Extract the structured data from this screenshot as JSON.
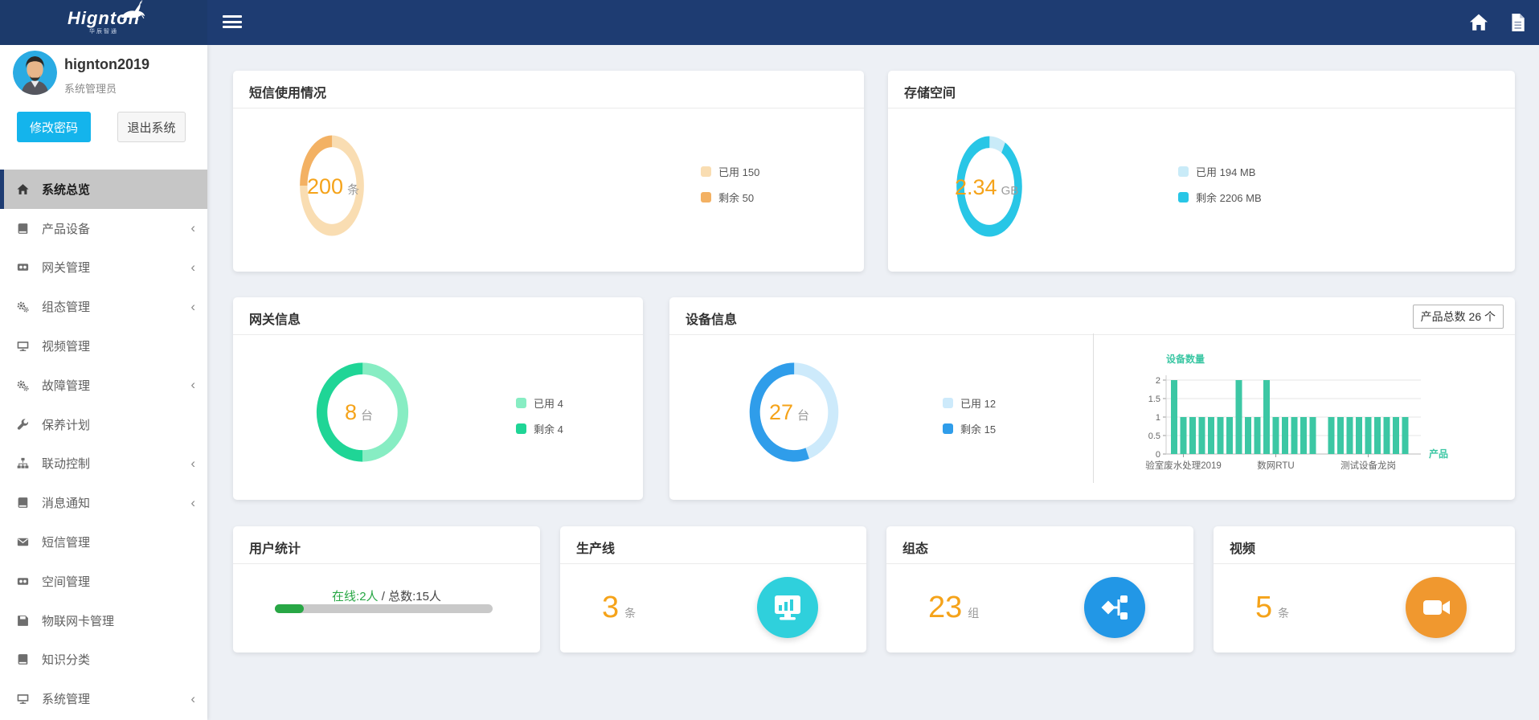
{
  "brand": {
    "name": "Hignton",
    "tagline": "华辰智通"
  },
  "topbar": {
    "icons": [
      "home-icon",
      "document-icon"
    ]
  },
  "user": {
    "name": "hignton2019",
    "role": "系统管理员",
    "change_password_label": "修改密码",
    "logout_label": "退出系统"
  },
  "sidebar": {
    "items": [
      {
        "label": "系统总览",
        "icon": "home-icon",
        "active": true,
        "expandable": false
      },
      {
        "label": "产品设备",
        "icon": "book-icon",
        "active": false,
        "expandable": true
      },
      {
        "label": "网关管理",
        "icon": "video-icon",
        "active": false,
        "expandable": true
      },
      {
        "label": "组态管理",
        "icon": "gears-icon",
        "active": false,
        "expandable": true
      },
      {
        "label": "视频管理",
        "icon": "monitor-icon",
        "active": false,
        "expandable": false
      },
      {
        "label": "故障管理",
        "icon": "gears-icon",
        "active": false,
        "expandable": true
      },
      {
        "label": "保养计划",
        "icon": "wrench-icon",
        "active": false,
        "expandable": false
      },
      {
        "label": "联动控制",
        "icon": "sitemap-icon",
        "active": false,
        "expandable": true
      },
      {
        "label": "消息通知",
        "icon": "book-icon",
        "active": false,
        "expandable": true
      },
      {
        "label": "短信管理",
        "icon": "envelope-icon",
        "active": false,
        "expandable": false
      },
      {
        "label": "空间管理",
        "icon": "video-icon",
        "active": false,
        "expandable": false
      },
      {
        "label": "物联网卡管理",
        "icon": "floppy-icon",
        "active": false,
        "expandable": false
      },
      {
        "label": "知识分类",
        "icon": "book-icon",
        "active": false,
        "expandable": false
      },
      {
        "label": "系统管理",
        "icon": "monitor-icon",
        "active": false,
        "expandable": true
      }
    ],
    "chevron_glyph": "‹"
  },
  "cards": {
    "sms": {
      "title": "短信使用情况",
      "center": {
        "value": "200",
        "unit": "条"
      },
      "chart": {
        "type": "donut",
        "segments": [
          {
            "label": "已用 150",
            "value": 150,
            "color": "#f9ddb2"
          },
          {
            "label": "剩余 50",
            "value": 50,
            "color": "#f3b163"
          }
        ]
      }
    },
    "storage": {
      "title": "存储空间",
      "center": {
        "value": "2.34",
        "unit": "GB"
      },
      "chart": {
        "type": "donut",
        "segments": [
          {
            "label": "已用 194 MB",
            "value": 194,
            "color": "#c9ebf8"
          },
          {
            "label": "剩余 2206 MB",
            "value": 2206,
            "color": "#28c6e6"
          }
        ]
      }
    },
    "gateway": {
      "title": "网关信息",
      "center": {
        "value": "8",
        "unit": "台"
      },
      "chart": {
        "type": "donut",
        "segments": [
          {
            "label": "已用 4",
            "value": 4,
            "color": "#87edc3"
          },
          {
            "label": "剩余 4",
            "value": 4,
            "color": "#1fd596"
          }
        ]
      }
    },
    "device": {
      "title": "设备信息",
      "badge": "产品总数 26 个",
      "center": {
        "value": "27",
        "unit": "台"
      },
      "chart": {
        "type": "donut",
        "segments": [
          {
            "label": "已用 12",
            "value": 12,
            "color": "#cdeafb"
          },
          {
            "label": "剩余 15",
            "value": 15,
            "color": "#2f9dea"
          }
        ]
      },
      "bar_chart": {
        "type": "bar",
        "title": "设备数量",
        "xlabel": "产品",
        "bar_color": "#3cc7a4",
        "label_color": "#3cc7a4",
        "ymax": 2,
        "yticks": [
          "0",
          "0.5",
          "1",
          "1.5",
          "2"
        ],
        "values": [
          2,
          1,
          1,
          1,
          1,
          1,
          1,
          2,
          1,
          1,
          2,
          1,
          1,
          1,
          1,
          1,
          0,
          1,
          1,
          1,
          1,
          1,
          1,
          1,
          1,
          1
        ],
        "x_tick_labels": [
          {
            "index": 1,
            "label": "验室废水处理2019"
          },
          {
            "index": 11,
            "label": "数网RTU"
          },
          {
            "index": 21,
            "label": "测试设备龙岗"
          }
        ]
      }
    },
    "users": {
      "title": "用户统计",
      "online_label": "在线:2人",
      "separator": " / ",
      "total_label": "总数:15人",
      "online": 2,
      "total": 15,
      "progress_color": "#28a745"
    },
    "production": {
      "title": "生产线",
      "value": "3",
      "unit": "条",
      "icon": "monitor-chart-icon",
      "icon_bg": "#2fd0dc"
    },
    "scada": {
      "title": "组态",
      "value": "23",
      "unit": "组",
      "icon": "flow-icon",
      "icon_bg": "#2297e6"
    },
    "video": {
      "title": "视频",
      "value": "5",
      "unit": "条",
      "icon": "video-camera-icon",
      "icon_bg": "#f0982f"
    }
  }
}
